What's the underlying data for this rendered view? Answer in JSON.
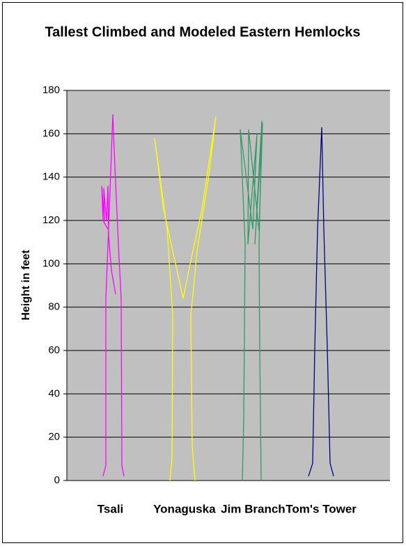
{
  "chart_data": {
    "type": "line",
    "title": "Tallest Climbed and Modeled Eastern Hemlocks",
    "y_label": "Height in feet",
    "categories": [
      "Tsali",
      "Yonaguska",
      "Jim Branch",
      "Tom's Tower"
    ],
    "xlim": [
      0,
      464
    ],
    "ylim": [
      0,
      180
    ],
    "yticks": [
      0,
      20,
      40,
      60,
      80,
      100,
      120,
      140,
      160,
      180
    ],
    "grid": true,
    "series": [
      {
        "color": "#ff00ff",
        "x": [
          52,
          56,
          56,
          61,
          66,
          69,
          74,
          78,
          79,
          82,
          null,
          59,
          52,
          50,
          54,
          53,
          57,
          59,
          60,
          64,
          70
        ],
        "values": [
          2,
          7,
          84,
          125,
          169,
          145,
          109,
          84,
          7,
          2,
          null,
          116,
          120,
          136,
          120,
          135,
          120,
          136,
          113,
          97,
          86
        ]
      },
      {
        "color": "#ffff00",
        "x": [
          148,
          151,
          152,
          144,
          126,
          139,
          154,
          167,
          179,
          194,
          214,
          204,
          187,
          178,
          180,
          184
        ],
        "values": [
          0,
          10,
          76,
          116,
          158,
          125,
          103,
          84,
          103,
          125,
          168,
          141,
          106,
          76,
          16,
          0
        ]
      },
      {
        "color": "#339966",
        "x": [
          252,
          254,
          256,
          249,
          267,
          273,
          260,
          261,
          276,
          281,
          270,
          280,
          276,
          277,
          279
        ],
        "values": [
          0,
          29,
          109,
          162,
          116,
          160,
          109,
          162,
          115,
          165,
          109,
          166,
          109,
          60,
          0
        ]
      },
      {
        "color": "#000080",
        "x": [
          347,
          353,
          356,
          360,
          366,
          369,
          374,
          378,
          383
        ],
        "values": [
          2,
          8,
          61,
          116,
          163,
          116,
          61,
          8,
          2
        ]
      }
    ]
  }
}
